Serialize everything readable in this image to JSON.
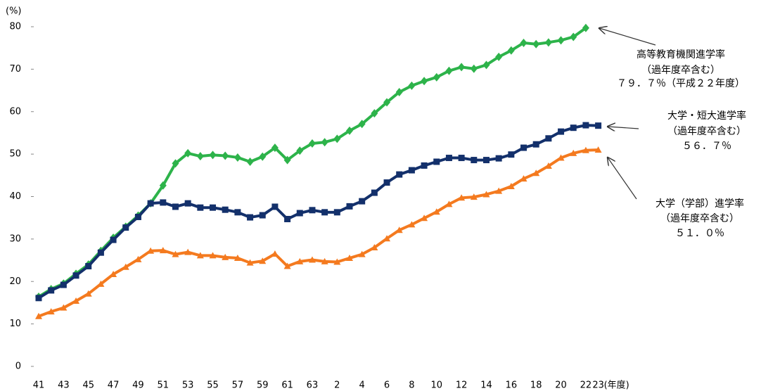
{
  "chart_data": {
    "type": "line",
    "ylabel": "(%)",
    "xlabel": "(年度)",
    "ylim": [
      0,
      80
    ],
    "yticks": [
      0,
      10,
      20,
      30,
      40,
      50,
      60,
      70,
      80
    ],
    "grid": false,
    "categories": [
      "41",
      null,
      "43",
      null,
      "45",
      null,
      "47",
      null,
      "49",
      null,
      "51",
      null,
      "53",
      null,
      "55",
      null,
      "57",
      null,
      "59",
      null,
      "61",
      null,
      "63",
      null,
      "2",
      null,
      "4",
      null,
      "6",
      null,
      "8",
      null,
      "10",
      null,
      "12",
      null,
      "14",
      null,
      "16",
      null,
      "18",
      null,
      "20",
      null,
      "22",
      "23"
    ],
    "series": [
      {
        "name": "高等教育機関進学率",
        "color": "#2db34a",
        "marker": "diamond",
        "values": [
          16.4,
          18.2,
          19.5,
          21.8,
          24,
          27.2,
          30.3,
          32.9,
          35.5,
          38.4,
          42.6,
          47.8,
          50.2,
          49.5,
          49.8,
          49.6,
          49.2,
          48.2,
          49.4,
          51.5,
          48.6,
          50.8,
          52.5,
          52.8,
          53.6,
          55.5,
          57.1,
          59.6,
          62.2,
          64.6,
          66.1,
          67.2,
          68.1,
          69.6,
          70.5,
          70.1,
          71,
          72.9,
          74.4,
          76.2,
          75.9,
          76.3,
          76.8,
          77.6,
          79.7,
          null
        ]
      },
      {
        "name": "大学・短大進学率",
        "color": "#13306b",
        "marker": "square",
        "values": [
          16.1,
          17.9,
          19.2,
          21.4,
          23.6,
          26.8,
          29.8,
          32.7,
          35.2,
          38.4,
          38.6,
          37.6,
          38.4,
          37.4,
          37.4,
          36.9,
          36.3,
          35.1,
          35.6,
          37.6,
          34.7,
          36.1,
          36.8,
          36.3,
          36.3,
          37.7,
          38.9,
          40.9,
          43.3,
          45.2,
          46.2,
          47.3,
          48.2,
          49.1,
          49.1,
          48.6,
          48.6,
          49.0,
          49.9,
          51.5,
          52.3,
          53.7,
          55.3,
          56.2,
          56.8,
          56.7
        ]
      },
      {
        "name": "大学（学部）進学率",
        "color": "#f47a1f",
        "marker": "triangle",
        "values": [
          11.8,
          12.9,
          13.8,
          15.4,
          17.1,
          19.4,
          21.7,
          23.4,
          25.2,
          27.2,
          27.3,
          26.4,
          26.9,
          26.1,
          26.1,
          25.7,
          25.5,
          24.4,
          24.8,
          26.5,
          23.6,
          24.7,
          25.1,
          24.7,
          24.6,
          25.5,
          26.4,
          28.0,
          30.1,
          32.1,
          33.4,
          34.9,
          36.4,
          38.2,
          39.7,
          39.9,
          40.5,
          41.3,
          42.4,
          44.2,
          45.5,
          47.2,
          49.1,
          50.2,
          50.9,
          51.0
        ]
      }
    ],
    "annotations": [
      [
        "高等教育機関進学率",
        "（過年度卒含む）",
        "７９．７％（平成２２年度）"
      ],
      [
        "大学・短大進学率",
        "（過年度卒含む）",
        "５６．７％"
      ],
      [
        "大学（学部）進学率",
        "（過年度卒含む）",
        "５１．０％"
      ]
    ]
  }
}
